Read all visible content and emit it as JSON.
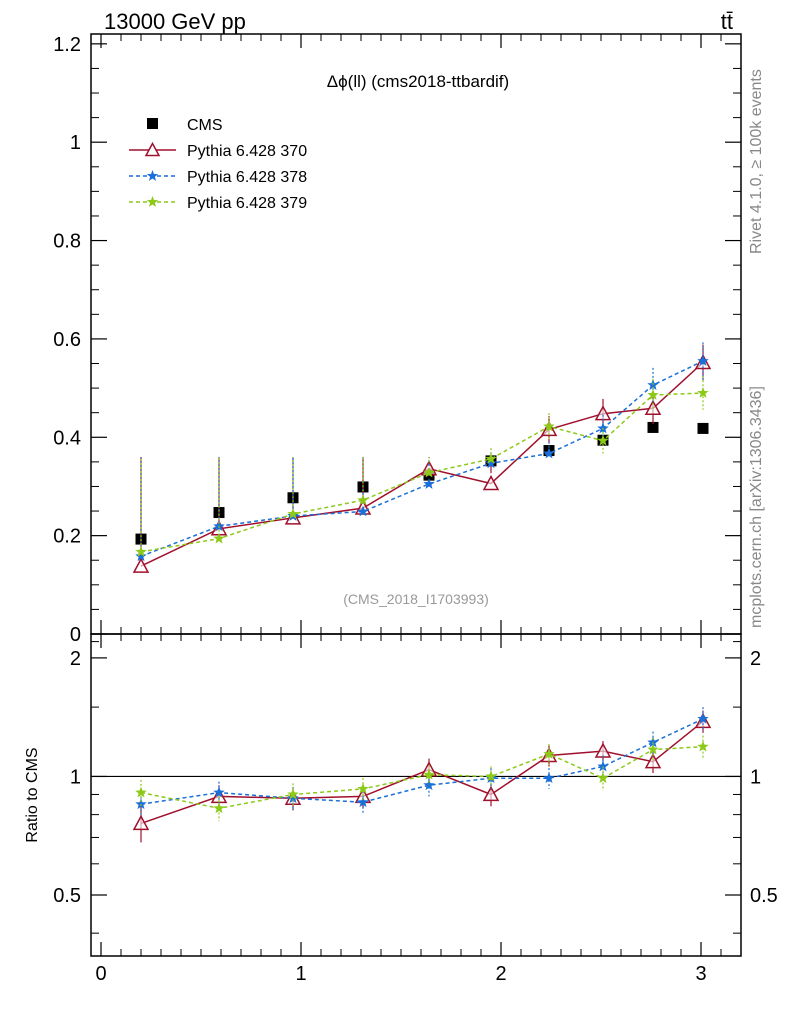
{
  "header": {
    "energy": "13000 GeV pp",
    "process": "tt̄"
  },
  "side_labels": {
    "rivet": "Rivet 4.1.0, ≥ 100k events",
    "mcplots": "mcplots.cern.ch [arXiv:1306.3436]"
  },
  "chart_data": {
    "type": "scatter",
    "title": "Δϕ(ll) (cms2018-ttbardif)",
    "analysis_label": "(CMS_2018_I1703993)",
    "xlabel": "",
    "ylabel": "",
    "ratio_ylabel": "Ratio to CMS",
    "xlim": [
      -0.05,
      3.2
    ],
    "ylim": [
      0,
      1.22
    ],
    "ratio_ylim": [
      0.35,
      2.3
    ],
    "x_ticks": [
      0,
      1,
      2,
      3
    ],
    "x_tick_labels": [
      "0",
      "1",
      "2",
      "3"
    ],
    "y_ticks": [
      0,
      0.2,
      0.4,
      0.6,
      0.8,
      1,
      1.2
    ],
    "y_tick_labels": [
      "0",
      "0.2",
      "0.4",
      "0.6",
      "0.8",
      "1",
      "1.2"
    ],
    "ratio_ticks": [
      0.5,
      1,
      2
    ],
    "ratio_tick_labels": [
      "0.5",
      "1",
      "2"
    ],
    "x": [
      0.2,
      0.59,
      0.96,
      1.31,
      1.64,
      1.95,
      2.24,
      2.51,
      2.76,
      3.01
    ],
    "legend_position": "top-left",
    "series": [
      {
        "name": "CMS",
        "style": "data",
        "color": "#000000",
        "values": [
          0.193,
          0.247,
          0.277,
          0.299,
          0.323,
          0.352,
          0.373,
          0.394,
          0.42,
          0.418
        ],
        "errors": [
          0.004,
          0.004,
          0.005,
          0.005,
          0.005,
          0.005,
          0.005,
          0.005,
          0.005,
          0.005
        ],
        "ratio": [
          1,
          1,
          1,
          1,
          1,
          1,
          1,
          1,
          1,
          1
        ]
      },
      {
        "name": "Pythia 6.428 370",
        "style": "triangle-solid",
        "color": "#a0102c",
        "values": [
          0.138,
          0.214,
          0.236,
          0.256,
          0.336,
          0.306,
          0.416,
          0.448,
          0.459,
          0.552
        ],
        "errors": [
          0.016,
          0.016,
          0.017,
          0.018,
          0.022,
          0.021,
          0.027,
          0.03,
          0.032,
          0.036
        ],
        "ratio": [
          0.76,
          0.89,
          0.88,
          0.89,
          1.04,
          0.9,
          1.13,
          1.16,
          1.09,
          1.38
        ],
        "ratio_errors": [
          0.08,
          0.06,
          0.06,
          0.06,
          0.07,
          0.06,
          0.07,
          0.07,
          0.07,
          0.09
        ]
      },
      {
        "name": "Pythia 6.428 378",
        "style": "star-dashed",
        "color": "#1a6fd8",
        "values": [
          0.158,
          0.219,
          0.24,
          0.249,
          0.305,
          0.347,
          0.367,
          0.418,
          0.506,
          0.555
        ],
        "errors": [
          0.013,
          0.015,
          0.016,
          0.017,
          0.02,
          0.022,
          0.024,
          0.028,
          0.035,
          0.038
        ],
        "ratio": [
          0.85,
          0.91,
          0.88,
          0.86,
          0.95,
          0.99,
          0.99,
          1.06,
          1.22,
          1.4
        ],
        "ratio_errors": [
          0.06,
          0.06,
          0.06,
          0.06,
          0.06,
          0.06,
          0.06,
          0.07,
          0.08,
          0.1
        ]
      },
      {
        "name": "Pythia 6.428 379",
        "style": "star-dashed",
        "color": "#8cc919",
        "values": [
          0.167,
          0.194,
          0.244,
          0.272,
          0.328,
          0.356,
          0.422,
          0.393,
          0.486,
          0.49
        ],
        "errors": [
          0.014,
          0.014,
          0.016,
          0.018,
          0.021,
          0.022,
          0.027,
          0.026,
          0.033,
          0.034
        ],
        "ratio": [
          0.91,
          0.83,
          0.9,
          0.93,
          1.01,
          1.0,
          1.14,
          0.99,
          1.17,
          1.19
        ],
        "ratio_errors": [
          0.07,
          0.06,
          0.06,
          0.06,
          0.06,
          0.06,
          0.07,
          0.07,
          0.08,
          0.08
        ]
      }
    ]
  }
}
